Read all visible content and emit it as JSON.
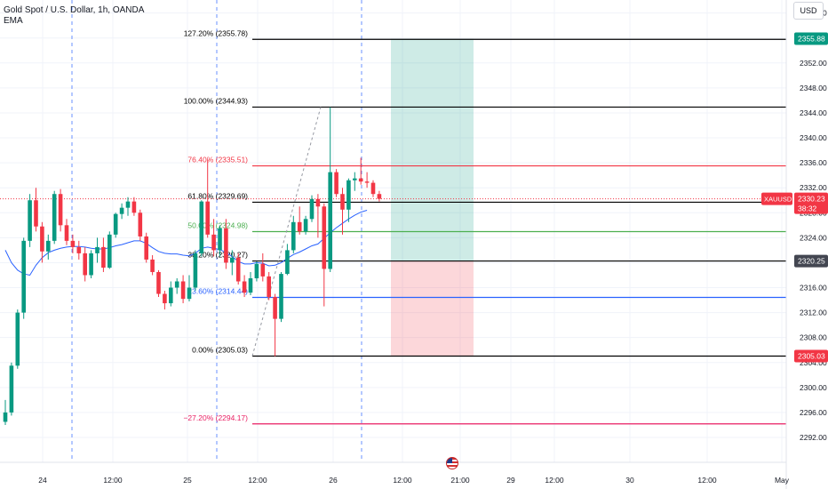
{
  "header": {
    "title": "Gold Spot / U.S. Dollar, 1h, OANDA",
    "indicator": "EMA"
  },
  "price_scale": {
    "currency": "USD"
  },
  "chart_data": {
    "type": "candlestick",
    "symbol": "XAUUSD",
    "ylim": [
      2290.5,
      2362.5
    ],
    "y_ticks": [
      2292,
      2296,
      2300,
      2304,
      2308,
      2312,
      2316,
      2320,
      2324,
      2328,
      2332,
      2336,
      2340,
      2344,
      2348,
      2352,
      2356,
      2360
    ],
    "x_ticks": [
      {
        "label": "24",
        "px": 48
      },
      {
        "label": "12:00",
        "px": 127
      },
      {
        "label": "25",
        "px": 211
      },
      {
        "label": "12:00",
        "px": 290
      },
      {
        "label": "26",
        "px": 375
      },
      {
        "label": "12:00",
        "px": 453
      },
      {
        "label": "21:00",
        "px": 518
      },
      {
        "label": "29",
        "px": 575
      },
      {
        "label": "12:00",
        "px": 624
      },
      {
        "label": "30",
        "px": 709
      },
      {
        "label": "12:00",
        "px": 796
      },
      {
        "label": "May",
        "px": 880
      }
    ],
    "session_breaks": [
      81,
      244,
      407
    ],
    "candles": [
      [
        2294.5,
        2298.0,
        2294.0,
        2296.0
      ],
      [
        2296.0,
        2304.0,
        2295.5,
        2303.5
      ],
      [
        2303.5,
        2312.5,
        2303.0,
        2312.0
      ],
      [
        2312.0,
        2324.0,
        2311.0,
        2323.5
      ],
      [
        2323.5,
        2331.0,
        2322.5,
        2330.0
      ],
      [
        2330.0,
        2332.0,
        2325.0,
        2325.8
      ],
      [
        2325.8,
        2326.5,
        2320.0,
        2321.8
      ],
      [
        2321.8,
        2324.5,
        2320.5,
        2323.5
      ],
      [
        2323.5,
        2331.5,
        2323.0,
        2331.0
      ],
      [
        2331.0,
        2331.8,
        2325.0,
        2326.0
      ],
      [
        2326.0,
        2327.0,
        2322.8,
        2323.5
      ],
      [
        2323.5,
        2324.5,
        2321.5,
        2322.5
      ],
      [
        2322.5,
        2323.5,
        2320.5,
        2321.5
      ],
      [
        2321.5,
        2322.5,
        2317.0,
        2318.0
      ],
      [
        2318.0,
        2322.0,
        2317.5,
        2321.5
      ],
      [
        2321.5,
        2324.0,
        2320.0,
        2322.5
      ],
      [
        2322.5,
        2324.0,
        2318.5,
        2319.2
      ],
      [
        2319.2,
        2325.0,
        2319.0,
        2324.5
      ],
      [
        2324.5,
        2328.0,
        2324.0,
        2327.8
      ],
      [
        2327.8,
        2329.5,
        2327.0,
        2328.8
      ],
      [
        2328.8,
        2330.5,
        2327.5,
        2329.8
      ],
      [
        2329.8,
        2330.5,
        2327.5,
        2328.0
      ],
      [
        2328.0,
        2328.5,
        2323.5,
        2324.2
      ],
      [
        2324.2,
        2324.8,
        2320.0,
        2320.5
      ],
      [
        2320.5,
        2321.2,
        2318.0,
        2318.5
      ],
      [
        2318.5,
        2318.8,
        2314.5,
        2315.0
      ],
      [
        2315.0,
        2315.5,
        2312.5,
        2313.5
      ],
      [
        2313.5,
        2317.0,
        2313.0,
        2316.0
      ],
      [
        2316.0,
        2317.5,
        2315.0,
        2317.0
      ],
      [
        2317.0,
        2318.0,
        2313.5,
        2314.2
      ],
      [
        2314.2,
        2318.0,
        2313.8,
        2316.0
      ],
      [
        2316.0,
        2322.0,
        2315.5,
        2321.5
      ],
      [
        2321.5,
        2330.0,
        2321.0,
        2329.8
      ],
      [
        2329.8,
        2336.5,
        2324.0,
        2324.5
      ],
      [
        2324.5,
        2327.0,
        2321.0,
        2322.0
      ],
      [
        2322.0,
        2326.0,
        2321.0,
        2325.5
      ],
      [
        2325.5,
        2327.0,
        2319.0,
        2320.0
      ],
      [
        2320.0,
        2322.0,
        2318.0,
        2320.8
      ],
      [
        2320.8,
        2321.5,
        2316.5,
        2317.0
      ],
      [
        2317.0,
        2318.0,
        2314.5,
        2315.2
      ],
      [
        2315.2,
        2318.5,
        2314.8,
        2317.5
      ],
      [
        2317.5,
        2320.2,
        2317.0,
        2319.8
      ],
      [
        2319.8,
        2321.5,
        2317.0,
        2317.8
      ],
      [
        2317.8,
        2318.5,
        2314.0,
        2314.5
      ],
      [
        2314.5,
        2315.0,
        2305.0,
        2311.0
      ],
      [
        2311.0,
        2318.5,
        2310.5,
        2318.2
      ],
      [
        2318.2,
        2323.0,
        2318.0,
        2322.0
      ],
      [
        2322.0,
        2327.5,
        2321.5,
        2326.5
      ],
      [
        2326.5,
        2329.0,
        2324.5,
        2325.0
      ],
      [
        2325.0,
        2327.5,
        2324.5,
        2327.0
      ],
      [
        2327.0,
        2330.8,
        2326.5,
        2330.2
      ],
      [
        2330.2,
        2331.0,
        2324.0,
        2329.0
      ],
      [
        2329.0,
        2329.5,
        2313.0,
        2319.0
      ],
      [
        2319.0,
        2344.9,
        2318.5,
        2334.5
      ],
      [
        2334.5,
        2335.0,
        2330.5,
        2331.0
      ],
      [
        2331.0,
        2332.0,
        2324.5,
        2328.5
      ],
      [
        2328.5,
        2333.5,
        2326.5,
        2333.2
      ],
      [
        2333.2,
        2334.5,
        2331.5,
        2333.5
      ],
      [
        2333.5,
        2336.8,
        2332.5,
        2333.0
      ],
      [
        2333.0,
        2334.5,
        2332.0,
        2332.8
      ],
      [
        2332.8,
        2333.2,
        2330.5,
        2331.0
      ],
      [
        2331.0,
        2331.5,
        2329.8,
        2330.23
      ]
    ],
    "ema": [
      2322.0,
      2320.0,
      2318.8,
      2318.2,
      2318.0,
      2319.6,
      2320.8,
      2321.6,
      2322.0,
      2322.3,
      2322.5,
      2322.6,
      2322.6,
      2322.5,
      2322.3,
      2322.2,
      2322.2,
      2322.4,
      2322.7,
      2322.9,
      2323.2,
      2323.5,
      2323.5,
      2323.1,
      2322.4,
      2321.8,
      2321.5,
      2321.4,
      2321.4,
      2321.2,
      2321.1,
      2321.5,
      2322.3,
      2322.5,
      2322.3,
      2322.1,
      2321.6,
      2321.0,
      2320.2,
      2319.8,
      2319.8,
      2320.0,
      2319.9,
      2319.5,
      2319.6,
      2320.0,
      2320.7,
      2321.3,
      2321.7,
      2322.2,
      2322.7,
      2323.0,
      2323.9,
      2324.8,
      2325.6,
      2326.3,
      2327.0,
      2327.6,
      2328.1,
      2328.4
    ],
    "fibonacci": [
      {
        "label": "127.20% (2355.78)",
        "price": 2355.78,
        "color": "#000000"
      },
      {
        "label": "100.00% (2344.93)",
        "price": 2344.93,
        "color": "#000000"
      },
      {
        "label": "76.40% (2335.51)",
        "price": 2335.51,
        "color": "#f23645"
      },
      {
        "label": "61.80% (2329.69)",
        "price": 2329.69,
        "color": "#000000"
      },
      {
        "label": "50.00% (2324.98)",
        "price": 2324.98,
        "color": "#4caf50"
      },
      {
        "label": "38.20% (2320.27)",
        "price": 2320.27,
        "color": "#000000"
      },
      {
        "label": "23.60% (2314.44)",
        "price": 2314.44,
        "color": "#2962ff"
      },
      {
        "label": "0.00% (2305.03)",
        "price": 2305.03,
        "color": "#000000"
      },
      {
        "label": "−27.20% (2294.17)",
        "price": 2294.17,
        "color": "#e91e63"
      }
    ],
    "position_tool": {
      "entry": 2320.25,
      "target": 2355.88,
      "stop": 2305.03
    },
    "price_labels": [
      {
        "text": "2355.88",
        "price": 2355.88,
        "bg": "#089981",
        "fg": "#ffffff"
      },
      {
        "text": "2320.25",
        "price": 2320.25,
        "bg": "#434651",
        "fg": "#ffffff"
      },
      {
        "text": "2305.03",
        "price": 2305.03,
        "bg": "#f23645",
        "fg": "#ffffff"
      }
    ],
    "last_price": {
      "symbol": "XAUUSD",
      "price": 2330.23,
      "text": "2330.23",
      "countdown": "38:32",
      "bg": "#f23645"
    },
    "colors": {
      "up": "#089981",
      "down": "#f23645",
      "ema": "#2962ff",
      "grid": "#f0f3fa",
      "session": "#2962ff"
    }
  }
}
